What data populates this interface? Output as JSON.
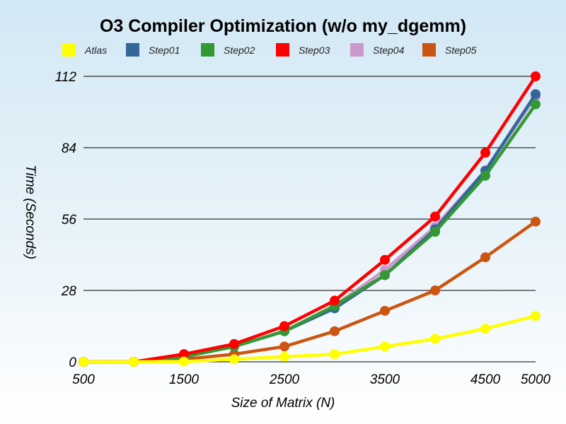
{
  "chart_data": {
    "type": "line",
    "title": "O3 Compiler Optimization (w/o my_dgemm)",
    "xlabel": "Size of Matrix (N)",
    "ylabel": "Time (Seconds)",
    "x": [
      500,
      1000,
      1500,
      2000,
      2500,
      3000,
      3500,
      4000,
      4500,
      5000
    ],
    "x_tick_labels": [
      "500",
      "1500",
      "2500",
      "3500",
      "4500",
      "5000"
    ],
    "y_ticks": [
      0,
      28,
      56,
      84,
      112
    ],
    "xlim": [
      500,
      5000
    ],
    "ylim": [
      0,
      112
    ],
    "grid": "horizontal",
    "legend_position": "top",
    "series": [
      {
        "name": "Atlas",
        "color": "#ffff00",
        "values": [
          0,
          0,
          0.1,
          1.0,
          2.0,
          3.0,
          6.0,
          9.0,
          13.0,
          18.0
        ]
      },
      {
        "name": "Step01",
        "color": "#336699",
        "values": [
          0,
          0,
          2.0,
          6.0,
          12.0,
          21.0,
          34.0,
          52.0,
          75.0,
          105.0
        ]
      },
      {
        "name": "Step02",
        "color": "#339933",
        "values": [
          0,
          0,
          2.0,
          6.0,
          12.0,
          22.0,
          34.0,
          51.0,
          73.0,
          101.0
        ]
      },
      {
        "name": "Step03",
        "color": "#ff0000",
        "values": [
          0,
          0,
          3.0,
          7.0,
          14.0,
          24.0,
          40.0,
          57.0,
          82.0,
          112.0
        ]
      },
      {
        "name": "Step04",
        "color": "#cc99cc",
        "values": [
          0,
          0,
          2.0,
          6.0,
          12.0,
          22.0,
          36.0,
          53.0,
          75.0,
          104.0
        ]
      },
      {
        "name": "Step05",
        "color": "#cc5511",
        "values": [
          0,
          0,
          1.0,
          3.0,
          6.0,
          12.0,
          20.0,
          28.0,
          41.0,
          55.0
        ]
      }
    ],
    "draw_order": [
      "Step05",
      "Step04",
      "Step01",
      "Step02",
      "Step03",
      "Atlas"
    ]
  }
}
